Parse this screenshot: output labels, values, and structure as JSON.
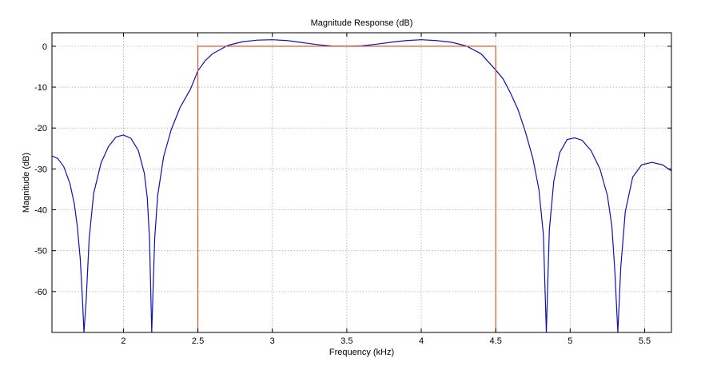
{
  "chart_data": {
    "type": "line",
    "title": "Magnitude Response (dB)",
    "xlabel": "Frequency (kHz)",
    "ylabel": "Magnitude (dB)",
    "xlim": [
      1.52,
      5.68
    ],
    "ylim": [
      -70,
      3.3
    ],
    "xticks": [
      2,
      2.5,
      3,
      3.5,
      4,
      4.5,
      5,
      5.5
    ],
    "xtick_labels": [
      "2",
      "2.5",
      "3",
      "3.5",
      "4",
      "4.5",
      "5",
      "5.5"
    ],
    "yticks": [
      0,
      -10,
      -20,
      -30,
      -40,
      -50,
      -60
    ],
    "ytick_labels": [
      "0",
      "-10",
      "-20",
      "-30",
      "-40",
      "-50",
      "-60"
    ],
    "grid": true,
    "series": [
      {
        "color": "#1010b0",
        "style": "line",
        "points": [
          [
            1.52,
            -26.8
          ],
          [
            1.56,
            -27.5
          ],
          [
            1.6,
            -29.5
          ],
          [
            1.64,
            -33.5
          ],
          [
            1.67,
            -38.5
          ],
          [
            1.69,
            -44.0
          ],
          [
            1.71,
            -52.0
          ],
          [
            1.725,
            -62.0
          ],
          [
            1.735,
            -70
          ],
          [
            1.75,
            -62.0
          ],
          [
            1.77,
            -47.0
          ],
          [
            1.8,
            -36.0
          ],
          [
            1.85,
            -28.5
          ],
          [
            1.9,
            -24.5
          ],
          [
            1.95,
            -22.2
          ],
          [
            2.0,
            -21.7
          ],
          [
            2.05,
            -22.5
          ],
          [
            2.1,
            -25.5
          ],
          [
            2.14,
            -31.0
          ],
          [
            2.16,
            -37.0
          ],
          [
            2.175,
            -47.0
          ],
          [
            2.19,
            -70
          ],
          [
            2.21,
            -47.0
          ],
          [
            2.23,
            -36.5
          ],
          [
            2.27,
            -27.0
          ],
          [
            2.32,
            -20.5
          ],
          [
            2.38,
            -15.0
          ],
          [
            2.45,
            -10.5
          ],
          [
            2.5,
            -6.0
          ],
          [
            2.55,
            -3.5
          ],
          [
            2.6,
            -1.8
          ],
          [
            2.7,
            0.2
          ],
          [
            2.8,
            1.1
          ],
          [
            2.9,
            1.5
          ],
          [
            3.0,
            1.6
          ],
          [
            3.1,
            1.4
          ],
          [
            3.2,
            0.9
          ],
          [
            3.3,
            0.4
          ],
          [
            3.4,
            0.05
          ],
          [
            3.5,
            0.0
          ],
          [
            3.6,
            0.1
          ],
          [
            3.7,
            0.5
          ],
          [
            3.8,
            1.0
          ],
          [
            3.9,
            1.4
          ],
          [
            4.0,
            1.6
          ],
          [
            4.1,
            1.4
          ],
          [
            4.2,
            1.0
          ],
          [
            4.3,
            0.1
          ],
          [
            4.4,
            -1.8
          ],
          [
            4.5,
            -5.8
          ],
          [
            4.55,
            -8.0
          ],
          [
            4.6,
            -11.5
          ],
          [
            4.65,
            -15.5
          ],
          [
            4.7,
            -21.0
          ],
          [
            4.75,
            -27.5
          ],
          [
            4.79,
            -35.0
          ],
          [
            4.82,
            -46.0
          ],
          [
            4.84,
            -70
          ],
          [
            4.86,
            -45.0
          ],
          [
            4.89,
            -33.0
          ],
          [
            4.93,
            -26.0
          ],
          [
            4.98,
            -22.8
          ],
          [
            5.03,
            -22.4
          ],
          [
            5.08,
            -23.0
          ],
          [
            5.14,
            -25.5
          ],
          [
            5.2,
            -30.0
          ],
          [
            5.25,
            -36.5
          ],
          [
            5.28,
            -44.0
          ],
          [
            5.3,
            -55.0
          ],
          [
            5.32,
            -70
          ],
          [
            5.34,
            -54.0
          ],
          [
            5.37,
            -40.5
          ],
          [
            5.42,
            -32.0
          ],
          [
            5.48,
            -29.0
          ],
          [
            5.55,
            -28.4
          ],
          [
            5.62,
            -29.0
          ],
          [
            5.68,
            -30.5
          ]
        ]
      },
      {
        "color": "#d45a2a",
        "style": "line",
        "points": [
          [
            2.5,
            -70
          ],
          [
            2.5,
            0
          ],
          [
            4.5,
            0
          ],
          [
            4.5,
            -70
          ]
        ]
      }
    ]
  }
}
